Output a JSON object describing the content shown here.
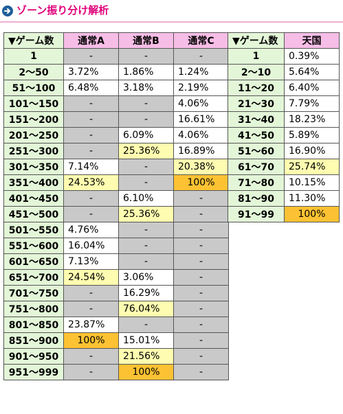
{
  "header": {
    "title": "ゾーン振り分け解析"
  },
  "colors": {
    "title": "#e0007a",
    "zone_bg": "#e3f6d8",
    "col_header_bg": "#f6bde6",
    "gray": "#c9c9c9",
    "yellow": "#fdfcb0",
    "orange": "#fdc233"
  },
  "normal_table": {
    "headers": [
      "▼ゲーム数",
      "通常A",
      "通常B",
      "通常C"
    ],
    "rows": [
      {
        "zone": "1",
        "cells": [
          {
            "v": "-",
            "s": "g"
          },
          {
            "v": "-",
            "s": "g"
          },
          {
            "v": "-",
            "s": "g"
          }
        ]
      },
      {
        "zone": "2～50",
        "cells": [
          {
            "v": "3.72%",
            "s": "w"
          },
          {
            "v": "1.86%",
            "s": "w"
          },
          {
            "v": "1.24%",
            "s": "w"
          }
        ]
      },
      {
        "zone": "51～100",
        "cells": [
          {
            "v": "6.48%",
            "s": "w"
          },
          {
            "v": "3.18%",
            "s": "w"
          },
          {
            "v": "2.19%",
            "s": "w"
          }
        ]
      },
      {
        "zone": "101～150",
        "cells": [
          {
            "v": "-",
            "s": "g"
          },
          {
            "v": "-",
            "s": "g"
          },
          {
            "v": "4.06%",
            "s": "w"
          }
        ]
      },
      {
        "zone": "151～200",
        "cells": [
          {
            "v": "-",
            "s": "g"
          },
          {
            "v": "-",
            "s": "g"
          },
          {
            "v": "16.61%",
            "s": "w"
          }
        ]
      },
      {
        "zone": "201～250",
        "cells": [
          {
            "v": "-",
            "s": "g"
          },
          {
            "v": "6.09%",
            "s": "w"
          },
          {
            "v": "4.06%",
            "s": "w"
          }
        ]
      },
      {
        "zone": "251～300",
        "cells": [
          {
            "v": "-",
            "s": "g"
          },
          {
            "v": "25.36%",
            "s": "y"
          },
          {
            "v": "16.89%",
            "s": "w"
          }
        ]
      },
      {
        "zone": "301～350",
        "cells": [
          {
            "v": "7.14%",
            "s": "w"
          },
          {
            "v": "-",
            "s": "g"
          },
          {
            "v": "20.38%",
            "s": "y"
          }
        ]
      },
      {
        "zone": "351～400",
        "cells": [
          {
            "v": "24.53%",
            "s": "y"
          },
          {
            "v": "-",
            "s": "g"
          },
          {
            "v": "100%",
            "s": "o"
          }
        ]
      },
      {
        "zone": "401～450",
        "cells": [
          {
            "v": "-",
            "s": "g"
          },
          {
            "v": "6.10%",
            "s": "w"
          },
          {
            "v": "-",
            "s": "g"
          }
        ]
      },
      {
        "zone": "451～500",
        "cells": [
          {
            "v": "-",
            "s": "g"
          },
          {
            "v": "25.36%",
            "s": "y"
          },
          {
            "v": "-",
            "s": "g"
          }
        ]
      },
      {
        "zone": "501～550",
        "cells": [
          {
            "v": "4.76%",
            "s": "w"
          },
          {
            "v": "-",
            "s": "g"
          },
          {
            "v": "-",
            "s": "g"
          }
        ]
      },
      {
        "zone": "551～600",
        "cells": [
          {
            "v": "16.04%",
            "s": "w"
          },
          {
            "v": "-",
            "s": "g"
          },
          {
            "v": "-",
            "s": "g"
          }
        ]
      },
      {
        "zone": "601～650",
        "cells": [
          {
            "v": "7.13%",
            "s": "w"
          },
          {
            "v": "-",
            "s": "g"
          },
          {
            "v": "-",
            "s": "g"
          }
        ]
      },
      {
        "zone": "651～700",
        "cells": [
          {
            "v": "24.54%",
            "s": "y"
          },
          {
            "v": "3.06%",
            "s": "w"
          },
          {
            "v": "-",
            "s": "g"
          }
        ]
      },
      {
        "zone": "701～750",
        "cells": [
          {
            "v": "-",
            "s": "g"
          },
          {
            "v": "16.29%",
            "s": "w"
          },
          {
            "v": "-",
            "s": "g"
          }
        ]
      },
      {
        "zone": "751～800",
        "cells": [
          {
            "v": "-",
            "s": "g"
          },
          {
            "v": "76.04%",
            "s": "y"
          },
          {
            "v": "-",
            "s": "g"
          }
        ]
      },
      {
        "zone": "801～850",
        "cells": [
          {
            "v": "23.87%",
            "s": "w"
          },
          {
            "v": "-",
            "s": "g"
          },
          {
            "v": "-",
            "s": "g"
          }
        ]
      },
      {
        "zone": "851～900",
        "cells": [
          {
            "v": "100%",
            "s": "o"
          },
          {
            "v": "15.01%",
            "s": "w"
          },
          {
            "v": "-",
            "s": "g"
          }
        ]
      },
      {
        "zone": "901～950",
        "cells": [
          {
            "v": "-",
            "s": "g"
          },
          {
            "v": "21.56%",
            "s": "y"
          },
          {
            "v": "-",
            "s": "g"
          }
        ]
      },
      {
        "zone": "951～999",
        "cells": [
          {
            "v": "-",
            "s": "g"
          },
          {
            "v": "100%",
            "s": "o"
          },
          {
            "v": "-",
            "s": "g"
          }
        ]
      }
    ]
  },
  "heaven_table": {
    "headers": [
      "▼ゲーム数",
      "天国"
    ],
    "rows": [
      {
        "zone": "1",
        "cells": [
          {
            "v": "0.39%",
            "s": "w"
          }
        ]
      },
      {
        "zone": "2～10",
        "cells": [
          {
            "v": "5.64%",
            "s": "w"
          }
        ]
      },
      {
        "zone": "11～20",
        "cells": [
          {
            "v": "6.40%",
            "s": "w"
          }
        ]
      },
      {
        "zone": "21～30",
        "cells": [
          {
            "v": "7.79%",
            "s": "w"
          }
        ]
      },
      {
        "zone": "31～40",
        "cells": [
          {
            "v": "18.23%",
            "s": "w"
          }
        ]
      },
      {
        "zone": "41～50",
        "cells": [
          {
            "v": "5.89%",
            "s": "w"
          }
        ]
      },
      {
        "zone": "51～60",
        "cells": [
          {
            "v": "16.90%",
            "s": "w"
          }
        ]
      },
      {
        "zone": "61～70",
        "cells": [
          {
            "v": "25.74%",
            "s": "y"
          }
        ]
      },
      {
        "zone": "71～80",
        "cells": [
          {
            "v": "10.15%",
            "s": "w"
          }
        ]
      },
      {
        "zone": "81～90",
        "cells": [
          {
            "v": "11.30%",
            "s": "w"
          }
        ]
      },
      {
        "zone": "91～99",
        "cells": [
          {
            "v": "100%",
            "s": "o"
          }
        ]
      }
    ]
  }
}
